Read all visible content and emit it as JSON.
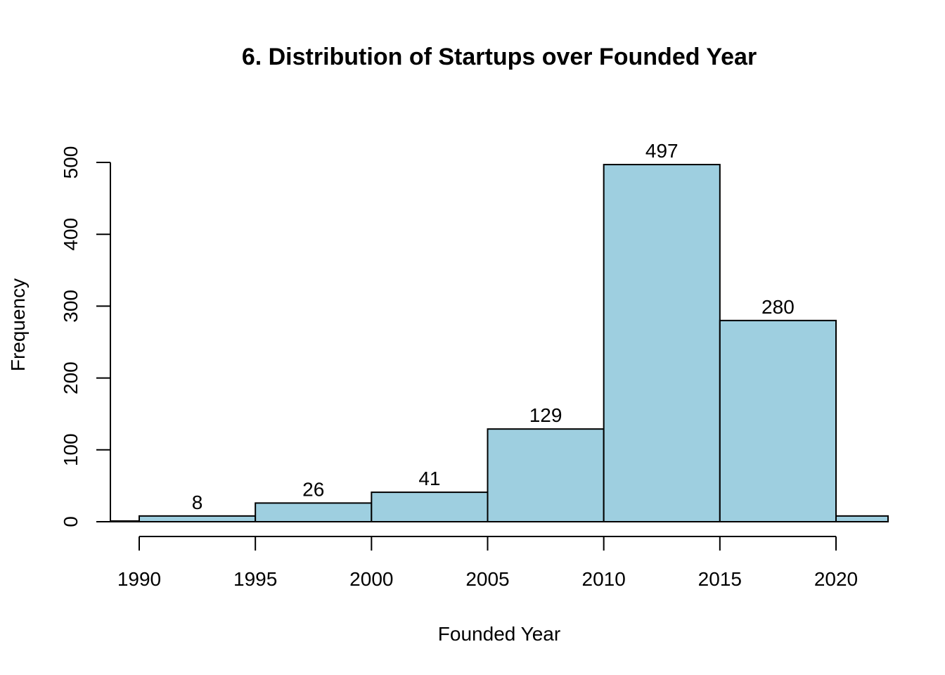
{
  "chart_data": {
    "type": "bar",
    "title": "6. Distribution of Startups over Founded Year",
    "xlabel": "Founded Year",
    "ylabel": "Frequency",
    "bins": [
      {
        "start": 1985,
        "end": 1990,
        "value": 1,
        "label": ""
      },
      {
        "start": 1990,
        "end": 1995,
        "value": 8,
        "label": "8"
      },
      {
        "start": 1995,
        "end": 2000,
        "value": 26,
        "label": "26"
      },
      {
        "start": 2000,
        "end": 2005,
        "value": 41,
        "label": "41"
      },
      {
        "start": 2005,
        "end": 2010,
        "value": 129,
        "label": "129"
      },
      {
        "start": 2010,
        "end": 2015,
        "value": 497,
        "label": "497"
      },
      {
        "start": 2015,
        "end": 2020,
        "value": 280,
        "label": "280"
      },
      {
        "start": 2020,
        "end": 2025,
        "value": 8,
        "label": ""
      }
    ],
    "x_ticks": [
      1990,
      1995,
      2000,
      2005,
      2010,
      2015,
      2020
    ],
    "x_tick_labels": [
      "1990",
      "1995",
      "2000",
      "2005",
      "2010",
      "2015",
      "2020"
    ],
    "y_ticks": [
      0,
      100,
      200,
      300,
      400,
      500
    ],
    "y_tick_labels": [
      "0",
      "100",
      "200",
      "300",
      "400",
      "500"
    ],
    "xlim": [
      1988.8,
      2022.3
    ],
    "ylim": [
      0,
      500
    ],
    "grid": false,
    "bar_color": "#9ecfe0",
    "edge_color": "#000000"
  }
}
